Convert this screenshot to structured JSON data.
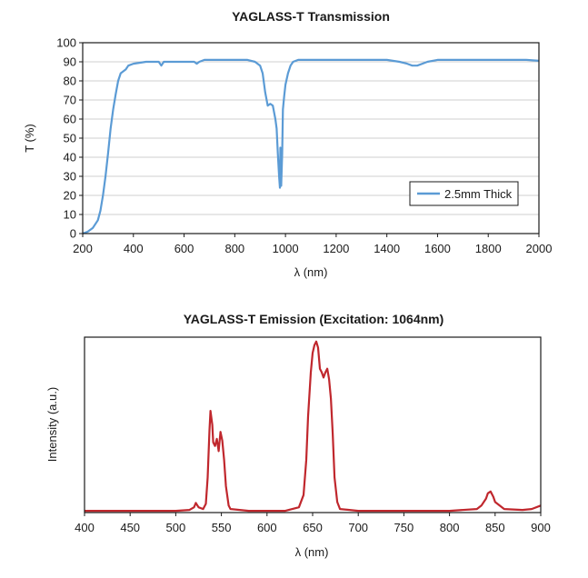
{
  "chart_data": [
    {
      "type": "line",
      "title": "YAGLASS-T Transmission",
      "xlabel": "λ (nm)",
      "ylabel": "T (%)",
      "xlim": [
        200,
        2000
      ],
      "ylim": [
        0,
        100
      ],
      "xticks": [
        200,
        400,
        600,
        800,
        1000,
        1200,
        1400,
        1600,
        1800,
        2000
      ],
      "yticks": [
        0,
        10,
        20,
        30,
        40,
        50,
        60,
        70,
        80,
        90,
        100
      ],
      "grid": "horizontal",
      "legend": "lower-right",
      "series": [
        {
          "name": "2.5mm Thick",
          "color": "#5b9bd5",
          "x": [
            200,
            220,
            240,
            260,
            270,
            280,
            290,
            300,
            310,
            320,
            330,
            340,
            350,
            360,
            370,
            380,
            400,
            450,
            480,
            500,
            510,
            520,
            550,
            600,
            640,
            650,
            660,
            680,
            700,
            750,
            800,
            850,
            880,
            900,
            910,
            920,
            930,
            940,
            950,
            960,
            965,
            970,
            975,
            978,
            980,
            983,
            987,
            990,
            995,
            1000,
            1010,
            1020,
            1030,
            1050,
            1100,
            1200,
            1300,
            1400,
            1450,
            1480,
            1500,
            1520,
            1540,
            1560,
            1600,
            1700,
            1800,
            1900,
            1950,
            2000
          ],
          "values": [
            0,
            1,
            3,
            7,
            12,
            20,
            30,
            42,
            55,
            65,
            73,
            80,
            84,
            85,
            86,
            88,
            89,
            90,
            90,
            90,
            88,
            90,
            90,
            90,
            90,
            89,
            90,
            91,
            91,
            91,
            91,
            91,
            90,
            88,
            84,
            74,
            67,
            68,
            67,
            60,
            55,
            42,
            30,
            24,
            45,
            25,
            42,
            65,
            72,
            78,
            84,
            88,
            90,
            91,
            91,
            91,
            91,
            91,
            90,
            89,
            88,
            88,
            89,
            90,
            91,
            91,
            91,
            91,
            91,
            90.5
          ]
        }
      ]
    },
    {
      "type": "line",
      "title": "YAGLASS-T Emission (Excitation: 1064nm)",
      "xlabel": "λ (nm)",
      "ylabel": "Intensity (a.u.)",
      "xlim": [
        400,
        900
      ],
      "ylim": [
        0,
        1
      ],
      "xticks": [
        400,
        450,
        500,
        550,
        600,
        650,
        700,
        750,
        800,
        850,
        900
      ],
      "grid": "none",
      "series": [
        {
          "color": "#c0272d",
          "x": [
            400,
            500,
            515,
            520,
            522,
            525,
            530,
            533,
            535,
            537,
            538,
            540,
            541,
            543,
            545,
            547,
            549,
            551,
            553,
            555,
            558,
            560,
            580,
            620,
            635,
            640,
            643,
            645,
            648,
            650,
            652,
            654,
            656,
            658,
            660,
            662,
            664,
            666,
            668,
            670,
            672,
            674,
            677,
            680,
            700,
            800,
            830,
            835,
            840,
            842,
            845,
            848,
            850,
            855,
            860,
            880,
            890,
            900
          ],
          "values": [
            0.01,
            0.01,
            0.015,
            0.03,
            0.055,
            0.03,
            0.02,
            0.05,
            0.2,
            0.47,
            0.58,
            0.5,
            0.4,
            0.38,
            0.42,
            0.35,
            0.46,
            0.41,
            0.3,
            0.15,
            0.04,
            0.02,
            0.01,
            0.01,
            0.03,
            0.1,
            0.3,
            0.55,
            0.8,
            0.91,
            0.955,
            0.975,
            0.94,
            0.82,
            0.8,
            0.77,
            0.8,
            0.82,
            0.76,
            0.65,
            0.45,
            0.2,
            0.06,
            0.02,
            0.01,
            0.01,
            0.02,
            0.04,
            0.08,
            0.11,
            0.12,
            0.09,
            0.06,
            0.04,
            0.02,
            0.015,
            0.02,
            0.04
          ]
        }
      ]
    }
  ]
}
